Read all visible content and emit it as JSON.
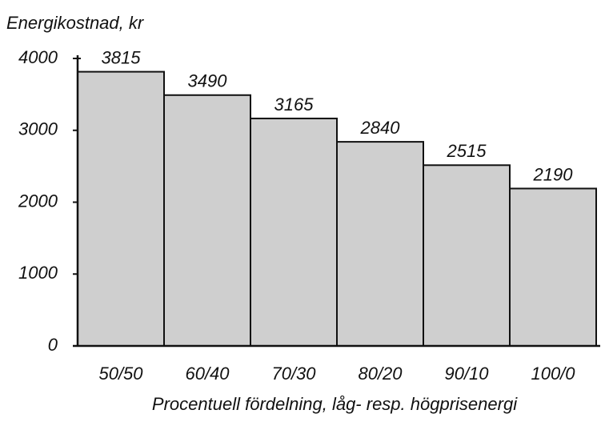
{
  "chart_data": {
    "type": "bar",
    "title": "Energikostnad, kr",
    "x_label": "Procentuell fördelning, låg- resp. högprisenergi",
    "categories": [
      "50/50",
      "60/40",
      "70/30",
      "80/20",
      "90/10",
      "100/0"
    ],
    "values": [
      3815,
      3490,
      3165,
      2840,
      2515,
      2190
    ],
    "color": "#cfcfcf",
    "ylim": [
      0,
      4000
    ],
    "yticks": [
      0,
      1000,
      2000,
      3000,
      4000
    ]
  }
}
